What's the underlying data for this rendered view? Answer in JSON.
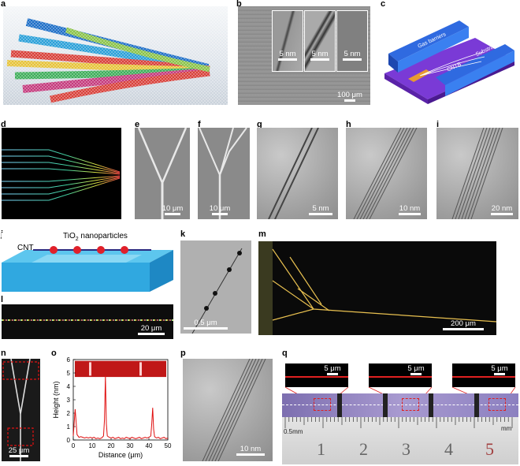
{
  "panels": {
    "a": {
      "label": "a"
    },
    "b": {
      "label": "b",
      "insets": [
        "5 nm",
        "5 nm",
        "5 nm"
      ],
      "scale": "100 μm"
    },
    "c": {
      "label": "c",
      "text_gas": "Gas barriers",
      "text_substrate": "Substrate",
      "text_cntb": "CNTB"
    },
    "d": {
      "label": "d"
    },
    "e": {
      "label": "e",
      "scale": "10 μm"
    },
    "f": {
      "label": "f",
      "scale": "10 μm"
    },
    "g": {
      "label": "g",
      "scale": "5 nm"
    },
    "h": {
      "label": "h",
      "scale": "10 nm"
    },
    "i": {
      "label": "i",
      "scale": "20 nm"
    },
    "j": {
      "label": "j",
      "text_tio2": "TiO",
      "text_tio2_sub": "2",
      "text_tio2_rest": " nanoparticles",
      "text_cnt": "CNT"
    },
    "k": {
      "label": "k",
      "scale": "0.5 μm"
    },
    "m": {
      "label": "m",
      "scale": "200 μm"
    },
    "l": {
      "label": "l",
      "scale": "20 μm"
    },
    "n": {
      "label": "n",
      "scale": "25 μm"
    },
    "o": {
      "label": "o",
      "ylabel": "Height (nm)",
      "xlabel": "Distance (μm)"
    },
    "p": {
      "label": "p",
      "scale": "10 nm"
    },
    "q": {
      "label": "q",
      "insets": [
        "5 μm",
        "5 μm",
        "5 μm"
      ],
      "ruler_left": "0.5mm",
      "ruler_right": "mm",
      "ruler_numbers": [
        "1",
        "2",
        "3",
        "4",
        "5"
      ]
    }
  },
  "chart_data": {
    "type": "line",
    "x": [
      0,
      1,
      2,
      3,
      4,
      5,
      6,
      7,
      8,
      9,
      10,
      11,
      12,
      13,
      14,
      15,
      16,
      16.5,
      17,
      17.5,
      18,
      19,
      20,
      21,
      22,
      23,
      24,
      25,
      26,
      27,
      28,
      29,
      30,
      31,
      32,
      33,
      34,
      35,
      36,
      37,
      38,
      39,
      40,
      41,
      41.5,
      42,
      42.5,
      43,
      44,
      45,
      46,
      47,
      48,
      49,
      50
    ],
    "values": [
      0.3,
      2.3,
      0.4,
      0.2,
      0.25,
      0.2,
      0.15,
      0.2,
      0.15,
      0.2,
      0.15,
      0.2,
      0.1,
      0.15,
      0.1,
      0.15,
      0.3,
      1.5,
      4.8,
      1.2,
      0.3,
      0.2,
      0.15,
      0.2,
      0.1,
      0.15,
      0.2,
      0.1,
      0.15,
      0.1,
      0.2,
      0.15,
      0.1,
      0.2,
      0.15,
      0.1,
      0.15,
      0.2,
      0.1,
      0.15,
      0.2,
      0.15,
      0.2,
      0.3,
      1.2,
      2.4,
      0.8,
      0.25,
      0.15,
      0.2,
      0.1,
      0.15,
      0.2,
      0.1,
      0.15
    ],
    "xlabel": "Distance (μm)",
    "ylabel": "Height (nm)",
    "xlim": [
      0,
      50
    ],
    "ylim": [
      0,
      6
    ],
    "xticks": [
      "0",
      "10",
      "20",
      "30",
      "40",
      "50"
    ],
    "yticks": [
      "0",
      "1",
      "2",
      "3",
      "4",
      "5",
      "6"
    ],
    "color": "#e01010"
  }
}
